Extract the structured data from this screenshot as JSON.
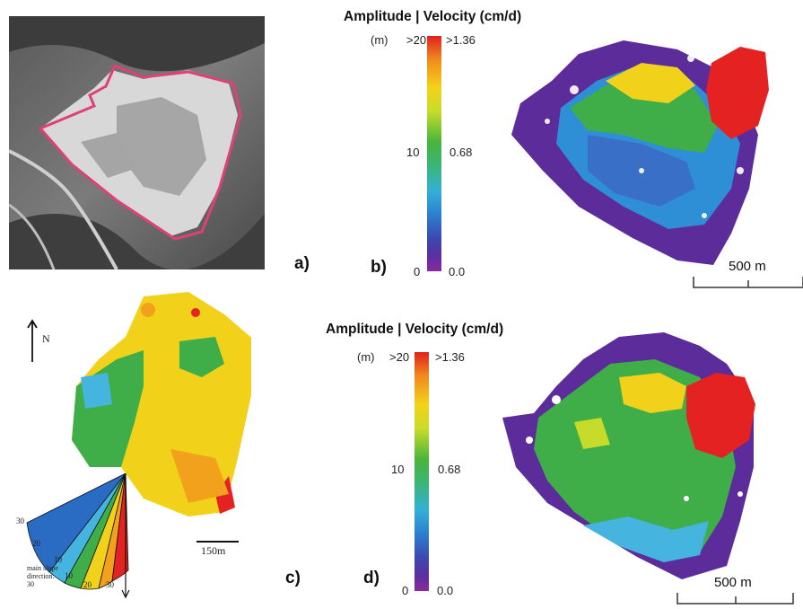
{
  "panels": {
    "a": {
      "label": "a)"
    },
    "b": {
      "label": "b)",
      "colorbar": {
        "title": "Amplitude | Velocity (cm/d)",
        "unit": "(m)",
        "left_top": ">20",
        "left_mid": "10",
        "left_bot": "0",
        "right_top": ">1.36",
        "right_mid": "0.68",
        "right_bot": "0.0"
      },
      "scale_text": "500 m"
    },
    "c": {
      "label": "c)",
      "north": "N",
      "scale_text": "150m",
      "rose_numbers": [
        "30",
        "20",
        "10",
        "10",
        "20",
        "30"
      ],
      "rose_caption": "main slope direction: 30"
    },
    "d": {
      "label": "d)",
      "colorbar": {
        "title": "Amplitude | Velocity (cm/d)",
        "unit": "(m)",
        "left_top": ">20",
        "left_mid": "10",
        "left_bot": "0",
        "right_top": ">1.36",
        "right_mid": "0.68",
        "right_bot": "0.0"
      },
      "scale_text": "500 m"
    }
  },
  "colors": {
    "outline": "#e0407a",
    "red": "#e32221",
    "purple": "#5b2c9a",
    "blue": "#2f8fd6",
    "green": "#3fae49",
    "yellow": "#f2d11b",
    "orange": "#f2a11d"
  }
}
